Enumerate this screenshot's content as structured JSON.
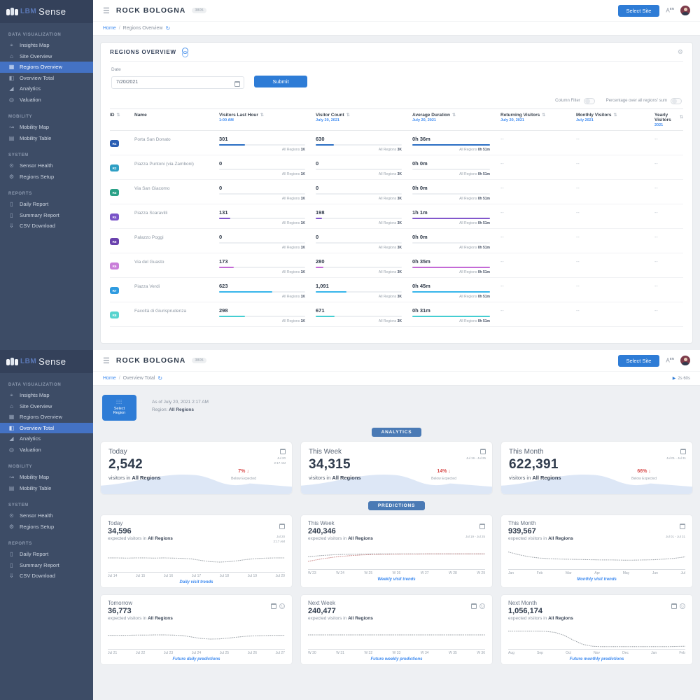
{
  "brand": {
    "prefix": "LBM",
    "name": "Sense"
  },
  "header": {
    "site_name": "ROCK BOLOGNA",
    "site_badge": "3805",
    "select_site_label": "Select Site",
    "language": "EN"
  },
  "sidebar": {
    "active_view1": "Regions Overview",
    "active_view2": "Overview Total",
    "sections": [
      {
        "label": "DATA VISUALIZATION",
        "items": [
          {
            "label": "Insights Map",
            "icon": "insights-map"
          },
          {
            "label": "Site Overview",
            "icon": "site-overview"
          },
          {
            "label": "Regions Overview",
            "icon": "regions-overview"
          },
          {
            "label": "Overview Total",
            "icon": "overview-total"
          },
          {
            "label": "Analytics",
            "icon": "analytics"
          },
          {
            "label": "Valuation",
            "icon": "valuation"
          }
        ]
      },
      {
        "label": "MOBILITY",
        "items": [
          {
            "label": "Mobility Map",
            "icon": "mobility-map"
          },
          {
            "label": "Mobility Table",
            "icon": "mobility-table"
          }
        ]
      },
      {
        "label": "SYSTEM",
        "items": [
          {
            "label": "Sensor Health",
            "icon": "sensor-health"
          },
          {
            "label": "Regions Setup",
            "icon": "regions-setup"
          }
        ]
      },
      {
        "label": "REPORTS",
        "items": [
          {
            "label": "Daily Report",
            "icon": "daily-report"
          },
          {
            "label": "Summary Report",
            "icon": "summary-report"
          },
          {
            "label": "CSV Download",
            "icon": "csv-download"
          }
        ]
      }
    ]
  },
  "view1": {
    "breadcrumb": {
      "home": "Home",
      "current": "Regions Overview"
    },
    "panel": {
      "title": "REGIONS OVERVIEW"
    },
    "form": {
      "date_label": "Date",
      "date_value": "7/20/2021",
      "submit_label": "Submit"
    },
    "toggles": {
      "column_filter": "Column Filter",
      "percentage": "Percentage over all regions' sum"
    },
    "table": {
      "all_regions_label": "All Regions",
      "totals": {
        "last_hour": "1K",
        "count": "3K",
        "duration": "0h 51m"
      },
      "headers": [
        {
          "label": "ID",
          "sub": "",
          "sortable": true
        },
        {
          "label": "Name",
          "sub": "",
          "sortable": false
        },
        {
          "label": "Visitors Last Hour",
          "sub": "1:00 AM",
          "sortable": true
        },
        {
          "label": "Visitor Count",
          "sub": "July 20, 2021",
          "sortable": true
        },
        {
          "label": "Average Duration",
          "sub": "July 20, 2021",
          "sortable": true
        },
        {
          "label": "Returning Visitors",
          "sub": "July 20, 2021",
          "sortable": true
        },
        {
          "label": "Monthly Visitors",
          "sub": "July 2021",
          "sortable": true
        },
        {
          "label": "Yearly Visitors",
          "sub": "2021",
          "sortable": true
        }
      ],
      "rows": [
        {
          "id": "R1",
          "color": "#2b5fb3",
          "bar": "#2b6fc4",
          "name": "Porta San Donato",
          "last_hour": "301",
          "lh_pct": 30,
          "count": "630",
          "c_pct": 21,
          "duration": "0h 36m",
          "d_pct": 100,
          "returning": "--",
          "monthly": "--",
          "yearly": "--"
        },
        {
          "id": "R2",
          "color": "#2f9fc4",
          "bar": "#2f9fc4",
          "name": "Piazza Puntoni (via Zamboni)",
          "last_hour": "0",
          "lh_pct": 0,
          "count": "0",
          "c_pct": 0,
          "duration": "0h 0m",
          "d_pct": 0,
          "returning": "--",
          "monthly": "--",
          "yearly": "--"
        },
        {
          "id": "R3",
          "color": "#2aa187",
          "bar": "#2aa187",
          "name": "Via San Giacomo",
          "last_hour": "0",
          "lh_pct": 0,
          "count": "0",
          "c_pct": 0,
          "duration": "0h 0m",
          "d_pct": 0,
          "returning": "--",
          "monthly": "--",
          "yearly": "--"
        },
        {
          "id": "R4",
          "color": "#7a55c9",
          "bar": "#8257cc",
          "name": "Piazza Scaravilli",
          "last_hour": "131",
          "lh_pct": 13,
          "count": "198",
          "c_pct": 7,
          "duration": "1h 1m",
          "d_pct": 100,
          "returning": "--",
          "monthly": "--",
          "yearly": "--"
        },
        {
          "id": "R5",
          "color": "#6a42ad",
          "bar": "#6a42ad",
          "name": "Palazzo Poggi",
          "last_hour": "0",
          "lh_pct": 0,
          "count": "0",
          "c_pct": 0,
          "duration": "0h 0m",
          "d_pct": 0,
          "returning": "--",
          "monthly": "--",
          "yearly": "--"
        },
        {
          "id": "R6",
          "color": "#c97fd9",
          "bar": "#c46ad6",
          "name": "Via del Guasto",
          "last_hour": "173",
          "lh_pct": 17,
          "count": "280",
          "c_pct": 9,
          "duration": "0h 35m",
          "d_pct": 100,
          "returning": "--",
          "monthly": "--",
          "yearly": "--"
        },
        {
          "id": "R7",
          "color": "#2f9be0",
          "bar": "#38b6ea",
          "name": "Piazza Verdi",
          "last_hour": "623",
          "lh_pct": 62,
          "count": "1,091",
          "c_pct": 36,
          "duration": "0h 45m",
          "d_pct": 100,
          "returning": "--",
          "monthly": "--",
          "yearly": "--"
        },
        {
          "id": "R8",
          "color": "#58d4cf",
          "bar": "#45ced2",
          "name": "Facoltà di Giurisprudenza",
          "last_hour": "298",
          "lh_pct": 30,
          "count": "671",
          "c_pct": 22,
          "duration": "0h 31m",
          "d_pct": 100,
          "returning": "--",
          "monthly": "--",
          "yearly": "--"
        }
      ]
    }
  },
  "view2": {
    "breadcrumb": {
      "home": "Home",
      "current": "Overview Total"
    },
    "timer": "2s 60s",
    "toolbar": {
      "select_region_label": "Select Region",
      "as_of": "As of July 20, 2021 2:17 AM",
      "region_label": "Region:",
      "region_value": "All Regions"
    },
    "sections": {
      "analytics": "ANALYTICS",
      "predictions": "PREDICTIONS"
    },
    "analytics_cards": [
      {
        "title": "Today",
        "value": "2,542",
        "caption_prefix": "visitors in",
        "region": "All Regions",
        "delta": "7%",
        "delta_note": "Below Expected",
        "date1": "Jul 20",
        "date2": "2:17 AM"
      },
      {
        "title": "This Week",
        "value": "34,315",
        "caption_prefix": "visitors in",
        "region": "All Regions",
        "delta": "14%",
        "delta_note": "Below Expected",
        "date1": "Jul 19 - Jul 25",
        "date2": ""
      },
      {
        "title": "This Month",
        "value": "622,391",
        "caption_prefix": "visitors in",
        "region": "All Regions",
        "delta": "66%",
        "delta_note": "Below Expected",
        "date1": "Jul 01 - Jul 31",
        "date2": ""
      }
    ],
    "prediction_cards": [
      {
        "title": "Today",
        "value": "34,596",
        "caption_prefix": "expected visitors in",
        "region": "All Regions",
        "link": "Daily visit trends",
        "date1": "Jul 20",
        "date2": "2:17 AM",
        "extra_icon": false,
        "ticks": [
          "Jul 14",
          "Jul 15",
          "Jul 16",
          "Jul 17",
          "Jul 18",
          "Jul 19",
          "Jul 20"
        ],
        "series": [
          {
            "color": "#9aa0a6",
            "values": [
              60,
              60,
              59,
              60,
              60,
              59,
              60,
              59,
              58,
              55,
              48,
              42,
              40,
              42,
              47,
              53,
              57,
              59,
              60,
              60
            ]
          }
        ]
      },
      {
        "title": "This Week",
        "value": "240,346",
        "caption_prefix": "expected visitors in",
        "region": "All Regions",
        "link": "Weekly visit trends",
        "date1": "Jul 19 - Jul 25",
        "date2": "",
        "extra_icon": false,
        "ticks": [
          "W 23",
          "W 24",
          "W 25",
          "W 26",
          "W 27",
          "W 28",
          "W 29"
        ],
        "series": [
          {
            "color": "#9aa0a6",
            "values": [
              52,
              58,
              62,
              64,
              65,
              66,
              66,
              66,
              66,
              66,
              66,
              66,
              66,
              66
            ]
          },
          {
            "color": "#cc8a8a",
            "values": [
              30,
              42,
              51,
              57,
              61,
              63,
              64,
              65,
              65,
              66,
              66,
              66,
              66,
              66
            ]
          }
        ]
      },
      {
        "title": "This Month",
        "value": "939,567",
        "caption_prefix": "expected visitors in",
        "region": "All Regions",
        "link": "Monthly visit trends",
        "date1": "Jul 01 - Jul 31",
        "date2": "",
        "extra_icon": false,
        "ticks": [
          "Jan",
          "Feb",
          "Mar",
          "Apr",
          "May",
          "Jun",
          "Jul"
        ],
        "series": [
          {
            "color": "#9aa0a6",
            "values": [
              75,
              62,
              52,
              46,
              43,
              41,
              40,
              39,
              38,
              37,
              37,
              36,
              36,
              37,
              38,
              41,
              45,
              52
            ]
          }
        ]
      },
      {
        "title": "Tomorrow",
        "value": "36,773",
        "caption_prefix": "expected visitors in",
        "region": "All Regions",
        "link": "Future daily predictions",
        "date1": "",
        "date2": "",
        "extra_icon": true,
        "ticks": [
          "Jul 21",
          "Jul 22",
          "Jul 23",
          "Jul 24",
          "Jul 25",
          "Jul 26",
          "Jul 27"
        ],
        "series": [
          {
            "color": "#9aa0a6",
            "values": [
              58,
              58,
              58,
              59,
              59,
              60,
              60,
              59,
              57,
              50,
              43,
              40,
              41,
              45,
              50,
              54,
              56,
              57,
              58,
              58
            ]
          }
        ]
      },
      {
        "title": "Next Week",
        "value": "240,477",
        "caption_prefix": "expected visitors in",
        "region": "All Regions",
        "link": "Future weekly predictions",
        "date1": "",
        "date2": "",
        "extra_icon": true,
        "ticks": [
          "W 30",
          "W 31",
          "W 32",
          "W 33",
          "W 34",
          "W 35",
          "W 36"
        ],
        "series": [
          {
            "color": "#9aa0a6",
            "values": [
              60,
              60,
              60,
              60,
              60,
              60,
              60,
              60,
              60,
              60,
              60,
              60,
              60,
              60
            ]
          }
        ]
      },
      {
        "title": "Next Month",
        "value": "1,056,174",
        "caption_prefix": "expected visitors in",
        "region": "All Regions",
        "link": "Future monthly predictions",
        "date1": "",
        "date2": "",
        "extra_icon": true,
        "ticks": [
          "Aug",
          "Sep",
          "Oct",
          "Nov",
          "Dec",
          "Jan",
          "Feb"
        ],
        "series": [
          {
            "color": "#9aa0a6",
            "values": [
              78,
              78,
              78,
              78,
              77,
              72,
              58,
              35,
              15,
              6,
              4,
              4,
              4,
              4,
              4,
              4,
              4,
              4,
              5,
              6
            ]
          }
        ]
      }
    ]
  }
}
